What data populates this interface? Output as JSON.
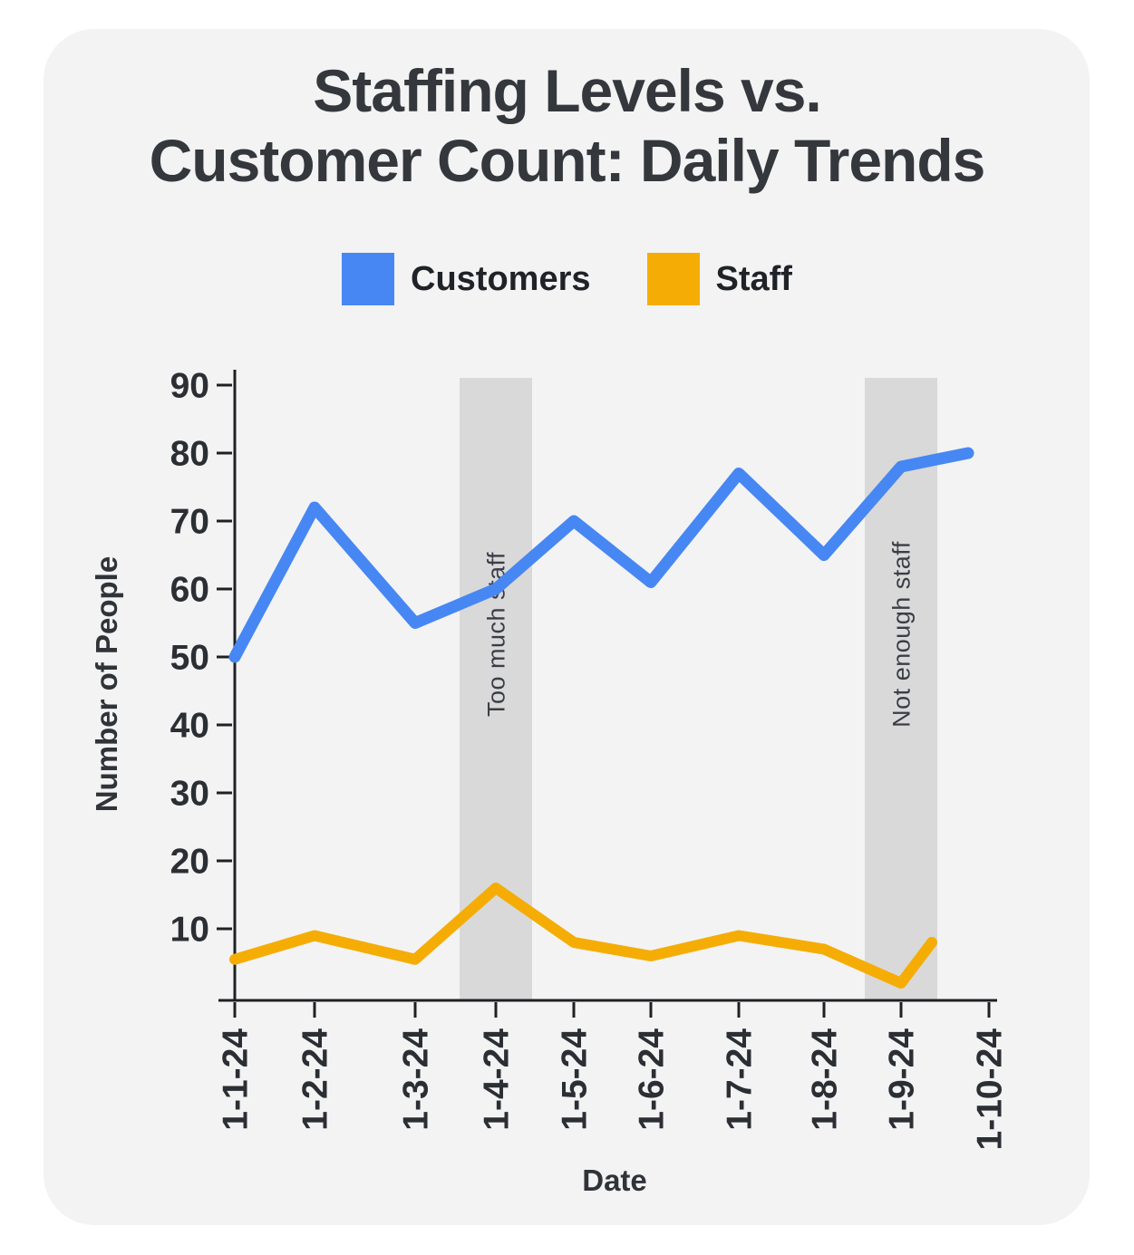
{
  "page": {
    "background": "#ffffff",
    "card_background": "#F3F3F4"
  },
  "title_lines": [
    "Staffing Levels vs.",
    "Customer Count: Daily Trends"
  ],
  "legend": {
    "items": [
      {
        "label": "Customers",
        "color": "#4787F3"
      },
      {
        "label": "Staff",
        "color": "#F5AD05"
      }
    ]
  },
  "chart_data": {
    "type": "line",
    "title": "Staffing Levels vs. Customer Count: Daily Trends",
    "xlabel": "Date",
    "ylabel": "Number of People",
    "categories": [
      "1-1-24",
      "1-2-24",
      "1-3-24",
      "1-4-24",
      "1-5-24",
      "1-6-24",
      "1-7-24",
      "1-8-24",
      "1-9-24",
      "1-10-24"
    ],
    "series": [
      {
        "name": "Customers",
        "color": "#4787F3",
        "values": [
          50,
          72,
          55,
          60,
          70,
          61,
          77,
          65,
          78,
          80
        ]
      },
      {
        "name": "Staff",
        "color": "#F5AD05",
        "values": [
          5.5,
          9,
          5.5,
          16,
          8,
          6,
          9,
          7,
          2,
          8
        ]
      }
    ],
    "ylim": [
      0,
      90
    ],
    "yticks": [
      10,
      20,
      30,
      40,
      50,
      60,
      70,
      80,
      90
    ],
    "grid": false,
    "legend_position": "top",
    "annotations": [
      {
        "type": "band",
        "category": "1-4-24",
        "label": "Too much staff"
      },
      {
        "type": "band",
        "category": "1-9-24",
        "label": "Not enough staff"
      }
    ],
    "band_color": "#D9D9DA",
    "axis_color": "#1F2023"
  }
}
